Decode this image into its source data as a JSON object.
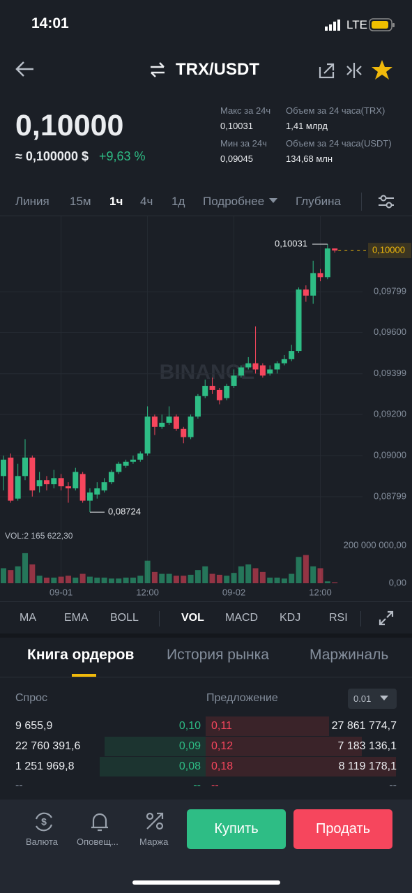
{
  "status": {
    "time": "14:01",
    "network": "LTE"
  },
  "header": {
    "pair": "TRX/USDT"
  },
  "ticker": {
    "last_price": "0,10000",
    "usd_price": "≈ 0,100000 $",
    "change": "+9,63 %",
    "stats": [
      {
        "label": "Макс за 24ч",
        "value": "0,10031"
      },
      {
        "label": "Мин за 24ч",
        "value": "0,09045"
      },
      {
        "label": "Объем за 24 часа(TRX)",
        "value": "1,41 млрд"
      },
      {
        "label": "Объем за 24 часа(USDT)",
        "value": "134,68 млн"
      }
    ]
  },
  "intervals": [
    "Линия",
    "15м",
    "1ч",
    "4ч",
    "1д",
    "Подробнее",
    "Глубина"
  ],
  "chart": {
    "type": "candlestick",
    "watermark": "BINANCE",
    "categories": [
      null,
      null,
      null,
      null,
      null,
      null,
      null,
      null,
      "09-01",
      null,
      null,
      null,
      null,
      null,
      null,
      null,
      null,
      null,
      null,
      null,
      "12:00",
      null,
      null,
      null,
      null,
      null,
      null,
      null,
      null,
      null,
      null,
      null,
      "09-02",
      null,
      null,
      null,
      null,
      null,
      null,
      null,
      null,
      null,
      null,
      null,
      "12:00",
      null,
      null
    ],
    "open": [
      0.089,
      0.0899,
      0.0879,
      0.089,
      0.0899,
      0.0885,
      0.0888,
      0.0886,
      0.0889,
      0.0885,
      0.0884,
      0.0891,
      0.0878,
      0.0881,
      0.0883,
      0.0887,
      0.0892,
      0.0895,
      0.0897,
      0.0898,
      0.0901,
      0.0919,
      0.0914,
      0.0916,
      0.0919,
      0.0913,
      0.0909,
      0.0919,
      0.0929,
      0.0934,
      0.0932,
      0.0928,
      0.0934,
      0.0939,
      0.0943,
      0.0945,
      0.0944,
      0.094,
      0.0942,
      0.0945,
      0.0947,
      0.0951,
      0.0981,
      0.0978,
      0.0989,
      0.0987,
      0.1001
    ],
    "high": [
      0.09,
      0.0901,
      0.0896,
      0.0908,
      0.09,
      0.0892,
      0.089,
      0.0893,
      0.0891,
      0.0887,
      0.0894,
      0.0892,
      0.0884,
      0.0887,
      0.0889,
      0.0893,
      0.0897,
      0.0898,
      0.09,
      0.0902,
      0.0924,
      0.092,
      0.092,
      0.0924,
      0.092,
      0.0914,
      0.092,
      0.093,
      0.0937,
      0.0938,
      0.0933,
      0.0935,
      0.0942,
      0.0944,
      0.0948,
      0.0963,
      0.0945,
      0.0944,
      0.0946,
      0.0949,
      0.0954,
      0.0982,
      0.0983,
      0.0995,
      0.0991,
      0.10031,
      0.1001
    ],
    "low": [
      0.0883,
      0.0877,
      0.0878,
      0.0888,
      0.088,
      0.0882,
      0.0883,
      0.0884,
      0.0883,
      0.0877,
      0.0883,
      0.0877,
      0.08724,
      0.0879,
      0.0882,
      0.0886,
      0.0891,
      0.0894,
      0.0896,
      0.0897,
      0.09,
      0.091,
      0.0913,
      0.0915,
      0.0912,
      0.0906,
      0.0908,
      0.0918,
      0.0928,
      0.093,
      0.0925,
      0.0927,
      0.0933,
      0.0938,
      0.0942,
      0.094,
      0.0938,
      0.0939,
      0.094,
      0.0944,
      0.0946,
      0.095,
      0.0975,
      0.0974,
      0.0985,
      0.0986,
      0.0999
    ],
    "close": [
      0.0898,
      0.0878,
      0.089,
      0.0899,
      0.0883,
      0.0888,
      0.0886,
      0.0889,
      0.0885,
      0.0884,
      0.0892,
      0.0878,
      0.0882,
      0.0884,
      0.0887,
      0.0892,
      0.0896,
      0.0897,
      0.0898,
      0.0901,
      0.0919,
      0.0914,
      0.0916,
      0.0919,
      0.0913,
      0.0909,
      0.0919,
      0.0929,
      0.0934,
      0.0932,
      0.0927,
      0.0934,
      0.0939,
      0.0943,
      0.0945,
      0.0942,
      0.0939,
      0.0942,
      0.0945,
      0.0947,
      0.0951,
      0.0981,
      0.0978,
      0.0989,
      0.0987,
      0.1001,
      0.1
    ],
    "volume": [
      80000000,
      70000000,
      90000000,
      160000000,
      100000000,
      40000000,
      30000000,
      30000000,
      35000000,
      40000000,
      30000000,
      50000000,
      35000000,
      30000000,
      30000000,
      25000000,
      25000000,
      30000000,
      30000000,
      40000000,
      120000000,
      60000000,
      50000000,
      50000000,
      40000000,
      40000000,
      45000000,
      70000000,
      90000000,
      50000000,
      45000000,
      40000000,
      55000000,
      90000000,
      100000000,
      80000000,
      60000000,
      30000000,
      30000000,
      25000000,
      50000000,
      140000000,
      150000000,
      90000000,
      80000000,
      10000000,
      5000000
    ],
    "ylim": [
      0.08663,
      0.10167
    ],
    "yticks": [
      {
        "value": 0.09799,
        "label": "0,09799"
      },
      {
        "value": 0.096,
        "label": "0,09600"
      },
      {
        "value": 0.09399,
        "label": "0,09399"
      },
      {
        "value": 0.092,
        "label": "0,09200"
      },
      {
        "value": 0.09,
        "label": "0,09000"
      },
      {
        "value": 0.08799,
        "label": "0,08799"
      }
    ],
    "last_price": {
      "value": 0.1,
      "label": "0,10000"
    },
    "high_label": {
      "value": 0.10031,
      "label": "0,10031"
    },
    "low_label": {
      "value": 0.08724,
      "label": "0,08724"
    },
    "volume_label": "VOL:2 165 622,30",
    "vol_ylim": [
      0,
      245000000
    ],
    "vol_yticks": [
      {
        "value": 200000000,
        "label": "200 000 000,00"
      },
      {
        "value": 0,
        "label": "0,00"
      }
    ],
    "up_color": "#2ebd85",
    "down_color": "#f6465d",
    "grid": true
  },
  "indicators": [
    "MA",
    "EMA",
    "BOLL",
    "VOL",
    "MACD",
    "KDJ",
    "RSI"
  ],
  "book_tabs": [
    "Книга ордеров",
    "История рынка",
    "Маржиналь"
  ],
  "order_book": {
    "bid_header": "Спрос",
    "ask_header": "Предложение",
    "precision": "0.01",
    "rows": [
      [
        "9 655,9",
        "0,10",
        "0,11",
        "27 861 774,7"
      ],
      [
        "22 760 391,6",
        "0,09",
        "0,12",
        "7 183 136,1"
      ],
      [
        "1 251 969,8",
        "0,08",
        "0,18",
        "8 119 178,1"
      ],
      [
        "--",
        "--",
        "--",
        "--"
      ]
    ]
  },
  "nav": [
    "Валюта",
    "Оповещ...",
    "Маржа"
  ],
  "actions": {
    "buy": "Купить",
    "sell": "Продать"
  }
}
